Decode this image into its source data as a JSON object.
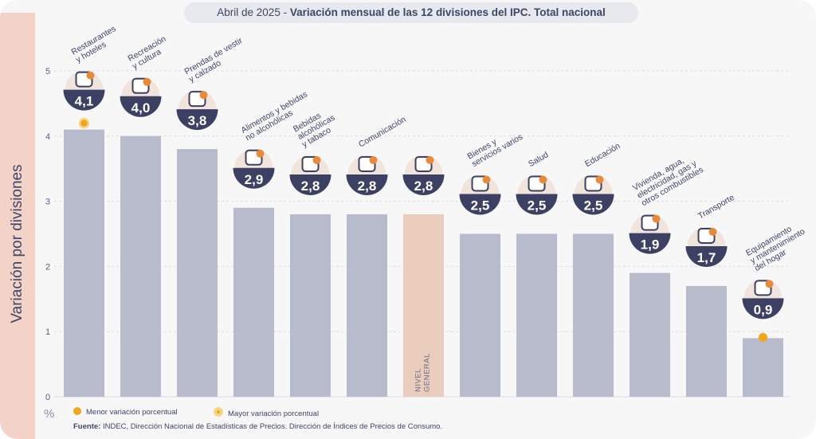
{
  "title": {
    "date_part": "Abril de 2025 -",
    "main_part": "Variación mensual de las 12 divisiones del IPC. Total nacional"
  },
  "y_axis_label": "Variación por divisiones",
  "percent_symbol": "%",
  "legend": {
    "min_label": "Menor variación porcentual",
    "max_label": "Mayor variación porcentual"
  },
  "source": {
    "label": "Fuente:",
    "text": "INDEC, Dirección Nacional de Estadísticas de Precios. Dirección de Índices de Precios de Consumo."
  },
  "colors": {
    "bar": "#b7bbcc",
    "highlight_bar": "#ebcdbd",
    "bubble": "#3c4062",
    "accent": "#f2a71b",
    "grid": "#d9dbe3"
  },
  "chart_data": {
    "type": "bar",
    "ylim": [
      0,
      5
    ],
    "yticks": [
      0,
      1,
      2,
      3,
      4,
      5
    ],
    "grid": true,
    "categories": [
      [
        "Restaurantes",
        "y hoteles"
      ],
      [
        "Recreación",
        "y cultura"
      ],
      [
        "Prendas de vestir",
        "y calzado"
      ],
      [
        "Alimentos y bebidas",
        "no alcohólicas"
      ],
      [
        "Bebidas",
        "alcohólicas",
        "y tabaco"
      ],
      [
        "Comunicación"
      ],
      [],
      [
        "Bienes y",
        "servicios varios"
      ],
      [
        "Salud"
      ],
      [
        "Educación"
      ],
      [
        "Vivienda, agua,",
        "electricidad, gas y",
        "otros combustibles"
      ],
      [
        "Transporte"
      ],
      [
        "Equipamiento",
        "y mantenimiento",
        "del hogar"
      ]
    ],
    "values": [
      4.1,
      4.0,
      3.8,
      2.9,
      2.8,
      2.8,
      2.8,
      2.5,
      2.5,
      2.5,
      1.9,
      1.7,
      0.9
    ],
    "value_labels": [
      "4,1",
      "4,0",
      "3,8",
      "2,9",
      "2,8",
      "2,8",
      "2,8",
      "2,5",
      "2,5",
      "2,5",
      "1,9",
      "1,7",
      "0,9"
    ],
    "icons": [
      "cutlery-icon",
      "beach-umbrella-icon",
      "tshirt-icon",
      "food-basket-icon",
      "bottles-icon",
      "smartphone-icon",
      "shopping-bag-icon",
      "scissors-icon",
      "first-aid-icon",
      "notebook-icon",
      "lightbulb-icon",
      "bus-card-icon",
      "air-conditioner-icon"
    ],
    "highlight_index": 6,
    "highlight_label": [
      "NIVEL",
      "GENERAL"
    ],
    "max_index": 0,
    "min_index": 12
  }
}
